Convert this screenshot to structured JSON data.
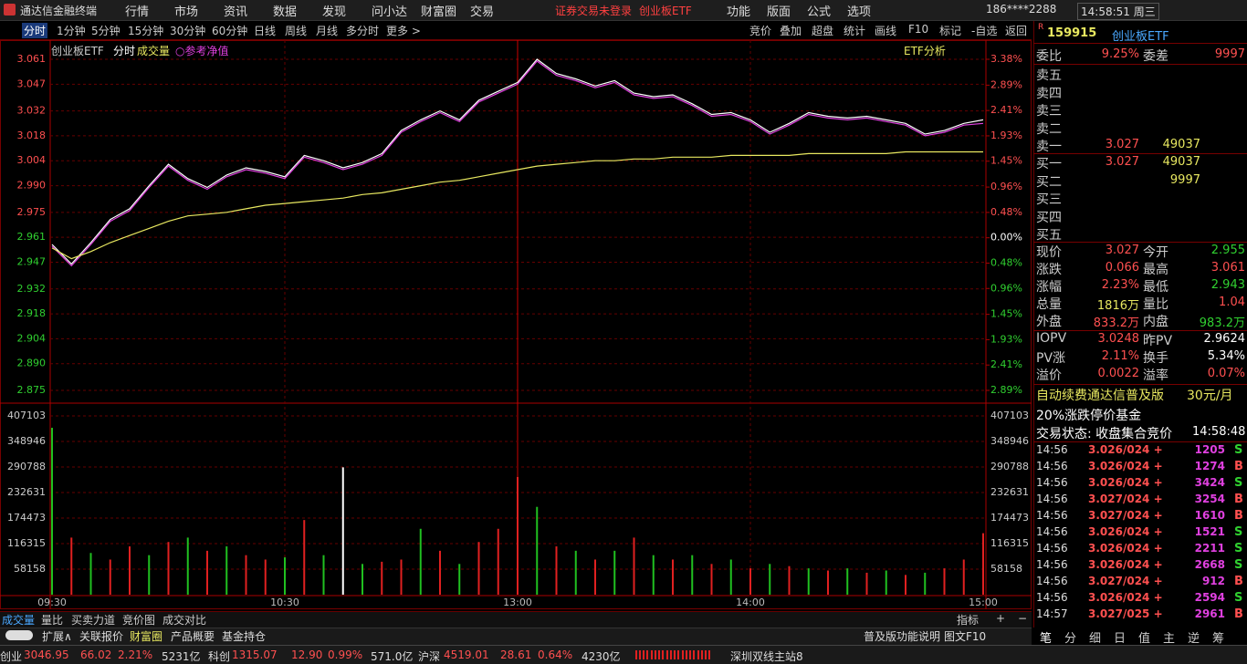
{
  "titlebar": {
    "app": "通达信金融终端",
    "menu": [
      "行情",
      "市场",
      "资讯",
      "数据",
      "发现",
      "问小达",
      "财富圈",
      "交易"
    ],
    "notice": "证券交易未登录",
    "notice2": "创业板ETF",
    "right_menu": [
      "功能",
      "版面",
      "公式",
      "选项"
    ],
    "account": "186****2288",
    "clock": "14:58:51 周三"
  },
  "toolbar": {
    "periods": [
      "分时",
      "1分钟",
      "5分钟",
      "15分钟",
      "30分钟",
      "60分钟",
      "日线",
      "周线",
      "月线",
      "多分时",
      "更多 >"
    ],
    "tools": [
      "竞价",
      "叠加",
      "超盘",
      "统计",
      "画线",
      "F10",
      "标记",
      "-自选",
      "返回"
    ]
  },
  "chart_header": {
    "name": "创业板ETF",
    "mode": "分时",
    "volume": "成交量",
    "etf_button": "ETF分析"
  },
  "chart_data": [
    {
      "type": "line",
      "x": [
        0,
        5,
        10,
        15,
        20,
        25,
        30,
        35,
        40,
        45,
        50,
        55,
        60,
        65,
        70,
        75,
        80,
        85,
        90,
        95,
        100,
        105,
        110,
        115,
        120,
        125,
        130,
        135,
        140,
        145,
        150,
        155,
        160,
        165,
        170,
        175,
        180,
        185,
        190,
        195,
        200,
        205,
        210,
        215,
        220,
        225,
        230,
        235,
        240
      ],
      "xlim": [
        0,
        240
      ],
      "ylim": [
        2.875,
        3.061
      ],
      "yticks": [
        2.875,
        {
          "value": 2.89,
          "label": "2.890"
        },
        2.904,
        2.918,
        2.932,
        2.947,
        2.961,
        2.975,
        {
          "value": 2.99,
          "label": "2.990"
        },
        3.004,
        3.018,
        3.032,
        3.047,
        3.061
      ],
      "y2lim": [
        -2.89,
        3.38
      ],
      "y2ticks": [
        {
          "value": -2.89,
          "label": "2.89%"
        },
        {
          "value": -2.41,
          "label": "2.41%"
        },
        {
          "value": -1.93,
          "label": "1.93%"
        },
        {
          "value": -1.45,
          "label": "1.45%"
        },
        {
          "value": -0.96,
          "label": "0.96%"
        },
        {
          "value": -0.48,
          "label": "0.48%"
        },
        {
          "value": 0,
          "label": "0.00%"
        },
        {
          "value": 0.48,
          "label": "0.48%"
        },
        {
          "value": 0.96,
          "label": "0.96%"
        },
        {
          "value": 1.45,
          "label": "1.45%"
        },
        {
          "value": 1.93,
          "label": "1.93%"
        },
        {
          "value": 2.41,
          "label": "2.41%"
        },
        {
          "value": 2.89,
          "label": "2.89%"
        },
        {
          "value": 3.38,
          "label": "3.38%"
        }
      ],
      "series": [
        {
          "color": "#ffffff",
          "values": [
            2.957,
            2.946,
            2.958,
            2.971,
            2.977,
            2.99,
            3.002,
            2.994,
            2.989,
            2.996,
            3.0,
            2.998,
            2.995,
            3.007,
            3.004,
            3.0,
            3.003,
            3.008,
            3.021,
            3.027,
            3.032,
            3.027,
            3.038,
            3.043,
            3.048,
            3.061,
            3.053,
            3.05,
            3.046,
            3.049,
            3.042,
            3.04,
            3.041,
            3.036,
            3.03,
            3.031,
            3.027,
            3.02,
            3.025,
            3.031,
            3.029,
            3.028,
            3.029,
            3.027,
            3.025,
            3.019,
            3.021,
            3.025,
            3.027
          ]
        },
        {
          "name": "○参考净值",
          "color": "#e040e0",
          "values": [
            2.956,
            2.945,
            2.957,
            2.97,
            2.976,
            2.989,
            3.001,
            2.993,
            2.988,
            2.995,
            2.999,
            2.997,
            2.994,
            3.006,
            3.003,
            2.999,
            3.002,
            3.007,
            3.02,
            3.026,
            3.031,
            3.026,
            3.037,
            3.042,
            3.047,
            3.06,
            3.052,
            3.049,
            3.045,
            3.048,
            3.041,
            3.039,
            3.04,
            3.035,
            3.029,
            3.03,
            3.026,
            3.019,
            3.024,
            3.03,
            3.028,
            3.027,
            3.028,
            3.026,
            3.024,
            3.018,
            3.02,
            3.024,
            3.025
          ]
        },
        {
          "color": "#e8e860",
          "values": [
            2.955,
            2.949,
            2.953,
            2.958,
            2.962,
            2.966,
            2.97,
            2.973,
            2.974,
            2.975,
            2.977,
            2.979,
            2.98,
            2.981,
            2.982,
            2.983,
            2.985,
            2.986,
            2.988,
            2.99,
            2.992,
            2.993,
            2.995,
            2.997,
            2.999,
            3.001,
            3.002,
            3.003,
            3.004,
            3.004,
            3.005,
            3.005,
            3.006,
            3.006,
            3.006,
            3.007,
            3.007,
            3.007,
            3.007,
            3.008,
            3.008,
            3.008,
            3.008,
            3.008,
            3.009,
            3.009,
            3.009,
            3.009,
            3.009
          ]
        }
      ]
    },
    {
      "type": "bar",
      "x": [
        0,
        5,
        10,
        15,
        20,
        25,
        30,
        35,
        40,
        45,
        50,
        55,
        60,
        65,
        70,
        75,
        80,
        85,
        90,
        95,
        100,
        105,
        110,
        115,
        120,
        125,
        130,
        135,
        140,
        145,
        150,
        155,
        160,
        165,
        170,
        175,
        180,
        185,
        190,
        195,
        200,
        205,
        210,
        215,
        220,
        225,
        230,
        235,
        240
      ],
      "xlim": [
        0,
        240
      ],
      "ylim": [
        0,
        407103
      ],
      "xticks": [
        {
          "value": 0,
          "label": "09:30"
        },
        {
          "value": 60,
          "label": "10:30"
        },
        {
          "value": 120,
          "label": "13:00"
        },
        {
          "value": 180,
          "label": "14:00"
        },
        {
          "value": 240,
          "label": "15:00"
        }
      ],
      "yticks": [
        58158,
        116315,
        174473,
        232631,
        290788,
        348946,
        407103
      ],
      "values": [
        380000,
        130000,
        95000,
        80000,
        110000,
        90000,
        120000,
        130000,
        100000,
        110000,
        90000,
        80000,
        85000,
        170000,
        90000,
        290000,
        70000,
        75000,
        80000,
        150000,
        100000,
        70000,
        120000,
        150000,
        268000,
        200000,
        110000,
        100000,
        80000,
        100000,
        130000,
        90000,
        80000,
        90000,
        70000,
        80000,
        60000,
        70000,
        65000,
        60000,
        55000,
        60000,
        50000,
        55000,
        45000,
        50000,
        60000,
        80000,
        140000
      ],
      "colors": [
        "#20c020",
        "#e02020",
        "#20c020",
        "#e02020",
        "#e02020",
        "#20c020",
        "#e02020",
        "#20c020",
        "#e02020",
        "#20c020",
        "#e02020",
        "#e02020",
        "#20c020",
        "#e02020",
        "#20c020",
        "#ffffff",
        "#20c020",
        "#e02020",
        "#e02020",
        "#20c020",
        "#e02020",
        "#20c020",
        "#e02020",
        "#e02020",
        "#e02020",
        "#20c020",
        "#e02020",
        "#20c020",
        "#e02020",
        "#20c020",
        "#e02020",
        "#20c020",
        "#e02020",
        "#20c020",
        "#e02020",
        "#20c020",
        "#e02020",
        "#20c020",
        "#e02020",
        "#20c020",
        "#e02020",
        "#20c020",
        "#e02020",
        "#20c020",
        "#e02020",
        "#20c020",
        "#e02020",
        "#e02020",
        "#e02020"
      ]
    }
  ],
  "sidebar": {
    "flag": "R",
    "code": "159915",
    "name": "创业板ETF",
    "weibi": [
      "委比",
      "9.25%",
      "委差",
      "9997"
    ],
    "sells": [
      {
        "label": "卖五"
      },
      {
        "label": "卖四"
      },
      {
        "label": "卖三"
      },
      {
        "label": "卖二"
      },
      {
        "label": "卖一",
        "price": "3.027",
        "volume": "49037"
      }
    ],
    "buys": [
      {
        "label": "买一",
        "price": "3.027",
        "volume": "49037"
      },
      {
        "label": "买二",
        "volume": "9997"
      },
      {
        "label": "买三"
      },
      {
        "label": "买四"
      },
      {
        "label": "买五"
      }
    ],
    "stats": [
      [
        "现价",
        "3.027",
        "今开",
        "2.955"
      ],
      [
        "涨跌",
        "0.066",
        "最高",
        "3.061"
      ],
      [
        "涨幅",
        "2.23%",
        "最低",
        "2.943"
      ],
      [
        "总量",
        "1816万",
        "量比",
        "1.04"
      ],
      [
        "外盘",
        "833.2万",
        "内盘",
        "983.2万"
      ]
    ],
    "etf": [
      [
        "IOPV",
        "3.0248",
        "昨PV",
        "2.9624"
      ],
      [
        "PV涨",
        "2.11%",
        "换手",
        "5.34%"
      ],
      [
        "溢价",
        "0.0022",
        "溢率",
        "0.07%"
      ]
    ],
    "ad": "自动续费通达信普及版",
    "ad_price": "30元/月",
    "fund_note": "20%涨跌停价基金",
    "state": "交易状态: 收盘集合竞价",
    "state_time": "14:58:48",
    "trades": [
      [
        "14:56",
        "3.026/024 +",
        "1205",
        "S"
      ],
      [
        "14:56",
        "3.026/024 +",
        "1274",
        "B"
      ],
      [
        "14:56",
        "3.026/024 +",
        "3424",
        "S"
      ],
      [
        "14:56",
        "3.027/024 +",
        "3254",
        "B"
      ],
      [
        "14:56",
        "3.027/024 +",
        "1610",
        "B"
      ],
      [
        "14:56",
        "3.026/024 +",
        "1521",
        "S"
      ],
      [
        "14:56",
        "3.026/024 +",
        "2211",
        "S"
      ],
      [
        "14:56",
        "3.026/024 +",
        "2668",
        "S"
      ],
      [
        "14:56",
        "3.027/024 +",
        "912",
        "B"
      ],
      [
        "14:56",
        "3.026/024 +",
        "2594",
        "S"
      ],
      [
        "14:57",
        "3.027/025 +",
        "2961",
        "B"
      ]
    ],
    "tabs": [
      "笔",
      "分",
      "细",
      "日",
      "值",
      "主",
      "逆",
      "筹"
    ]
  },
  "bottom": {
    "tabs": [
      "成交量",
      "量比",
      "买卖力道",
      "竞价图",
      "成交对比"
    ],
    "right": [
      "指标",
      "+",
      "−"
    ],
    "links": [
      "扩展∧",
      "关联报价",
      "财富圈",
      "产品概要",
      "基金持仓"
    ],
    "links_right": [
      "普及版功能说明",
      "图文F10"
    ]
  },
  "status": {
    "items": [
      "创业",
      "3046.95",
      "66.02",
      "2.21%",
      "5231亿",
      "科创",
      "1315.07",
      "12.90",
      "0.99%",
      "571.0亿",
      "沪深",
      "4519.01",
      "28.61",
      "0.64%",
      "4230亿"
    ],
    "server": "深圳双线主站8"
  }
}
